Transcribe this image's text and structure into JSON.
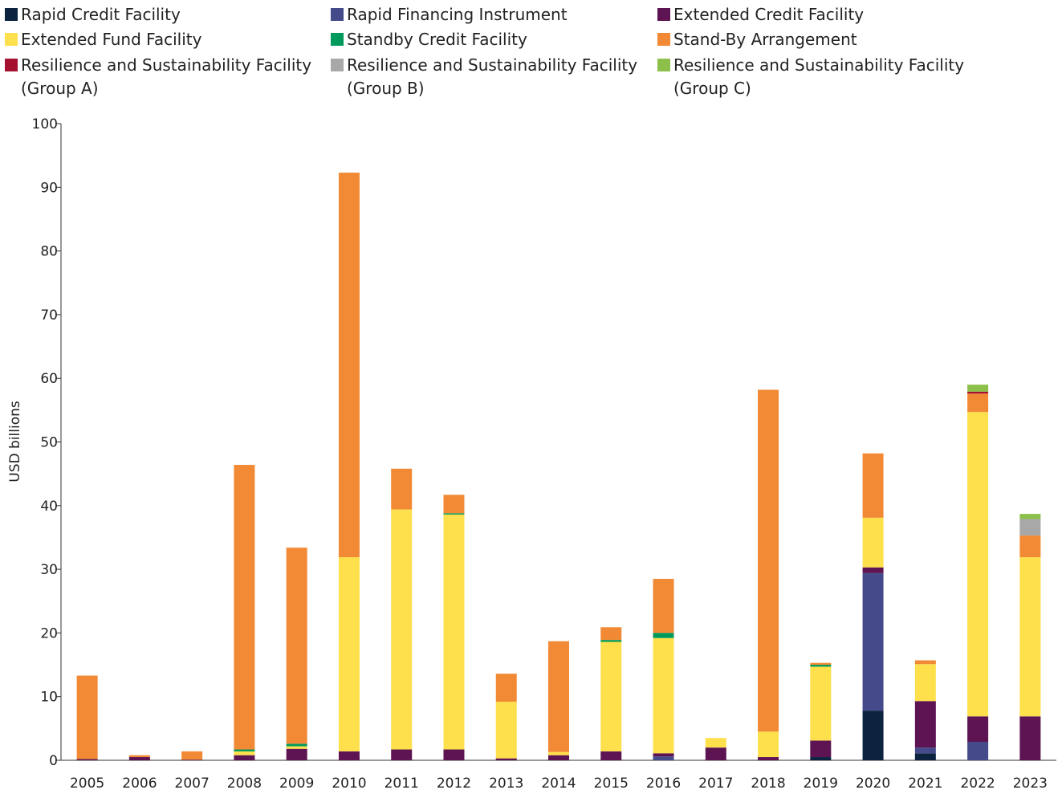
{
  "chart_data": {
    "type": "bar",
    "stacked": true,
    "ylabel": "USD billions",
    "xlabel": "",
    "ylim": [
      0,
      100
    ],
    "yticks": [
      0,
      10,
      20,
      30,
      40,
      50,
      60,
      70,
      80,
      90,
      100
    ],
    "grid": false,
    "legend_position": "top",
    "categories": [
      "2005",
      "2006",
      "2007",
      "2008",
      "2009",
      "2010",
      "2011",
      "2012",
      "2013",
      "2014",
      "2015",
      "2016",
      "2017",
      "2018",
      "2019",
      "2020",
      "2021",
      "2022",
      "2023"
    ],
    "series": [
      {
        "name": "Rapid Credit Facility",
        "color": "#0c2340",
        "values": [
          0,
          0,
          0,
          0,
          0,
          0,
          0,
          0,
          0,
          0,
          0,
          0,
          0,
          0,
          0.5,
          7.8,
          1.1,
          0,
          0
        ]
      },
      {
        "name": "Rapid Financing Instrument",
        "color": "#454a8a",
        "values": [
          0,
          0,
          0,
          0,
          0,
          0,
          0,
          0,
          0,
          0,
          0,
          0.6,
          0,
          0,
          0,
          21.6,
          0.9,
          2.9,
          0
        ]
      },
      {
        "name": "Extended Credit Facility",
        "color": "#5e1452",
        "values": [
          0.2,
          0.5,
          0.1,
          0.8,
          1.8,
          1.4,
          1.7,
          1.7,
          0.3,
          0.8,
          1.4,
          0.5,
          2.0,
          0.5,
          2.6,
          0.9,
          7.3,
          4.0,
          6.9
        ]
      },
      {
        "name": "Extended Fund Facility",
        "color": "#fde04c",
        "values": [
          0,
          0,
          0,
          0.6,
          0.4,
          30.5,
          37.7,
          36.9,
          8.9,
          0.5,
          17.2,
          18.1,
          1.5,
          4.0,
          11.6,
          7.8,
          5.8,
          47.8,
          25.0
        ]
      },
      {
        "name": "Standby Credit Facility",
        "color": "#009a5c",
        "values": [
          0,
          0,
          0,
          0.3,
          0.4,
          0,
          0,
          0.2,
          0,
          0,
          0.3,
          0.8,
          0,
          0,
          0.3,
          0,
          0,
          0,
          0
        ]
      },
      {
        "name": "Stand-By Arrangement",
        "color": "#f28a35",
        "values": [
          13.1,
          0.3,
          1.3,
          44.7,
          30.8,
          60.4,
          6.4,
          2.9,
          4.4,
          17.4,
          2.0,
          8.5,
          0,
          53.7,
          0.3,
          10.1,
          0.6,
          2.9,
          3.4
        ]
      },
      {
        "name": "Resilience and Sustainability Facility\n(Group A)",
        "color": "#a5102e",
        "values": [
          0,
          0,
          0,
          0,
          0,
          0,
          0,
          0,
          0,
          0,
          0,
          0,
          0,
          0,
          0,
          0,
          0,
          0.3,
          0
        ]
      },
      {
        "name": "Resilience and Sustainability Facility\n(Group B)",
        "color": "#a8a8a8",
        "values": [
          0,
          0,
          0,
          0,
          0,
          0,
          0,
          0,
          0,
          0,
          0,
          0,
          0,
          0,
          0,
          0,
          0,
          0,
          2.6
        ]
      },
      {
        "name": "Resilience and Sustainability Facility\n(Group C)",
        "color": "#8cc04a",
        "values": [
          0,
          0,
          0,
          0,
          0,
          0,
          0,
          0,
          0,
          0,
          0,
          0,
          0,
          0,
          0,
          0,
          0,
          1.1,
          0.8
        ]
      }
    ]
  }
}
